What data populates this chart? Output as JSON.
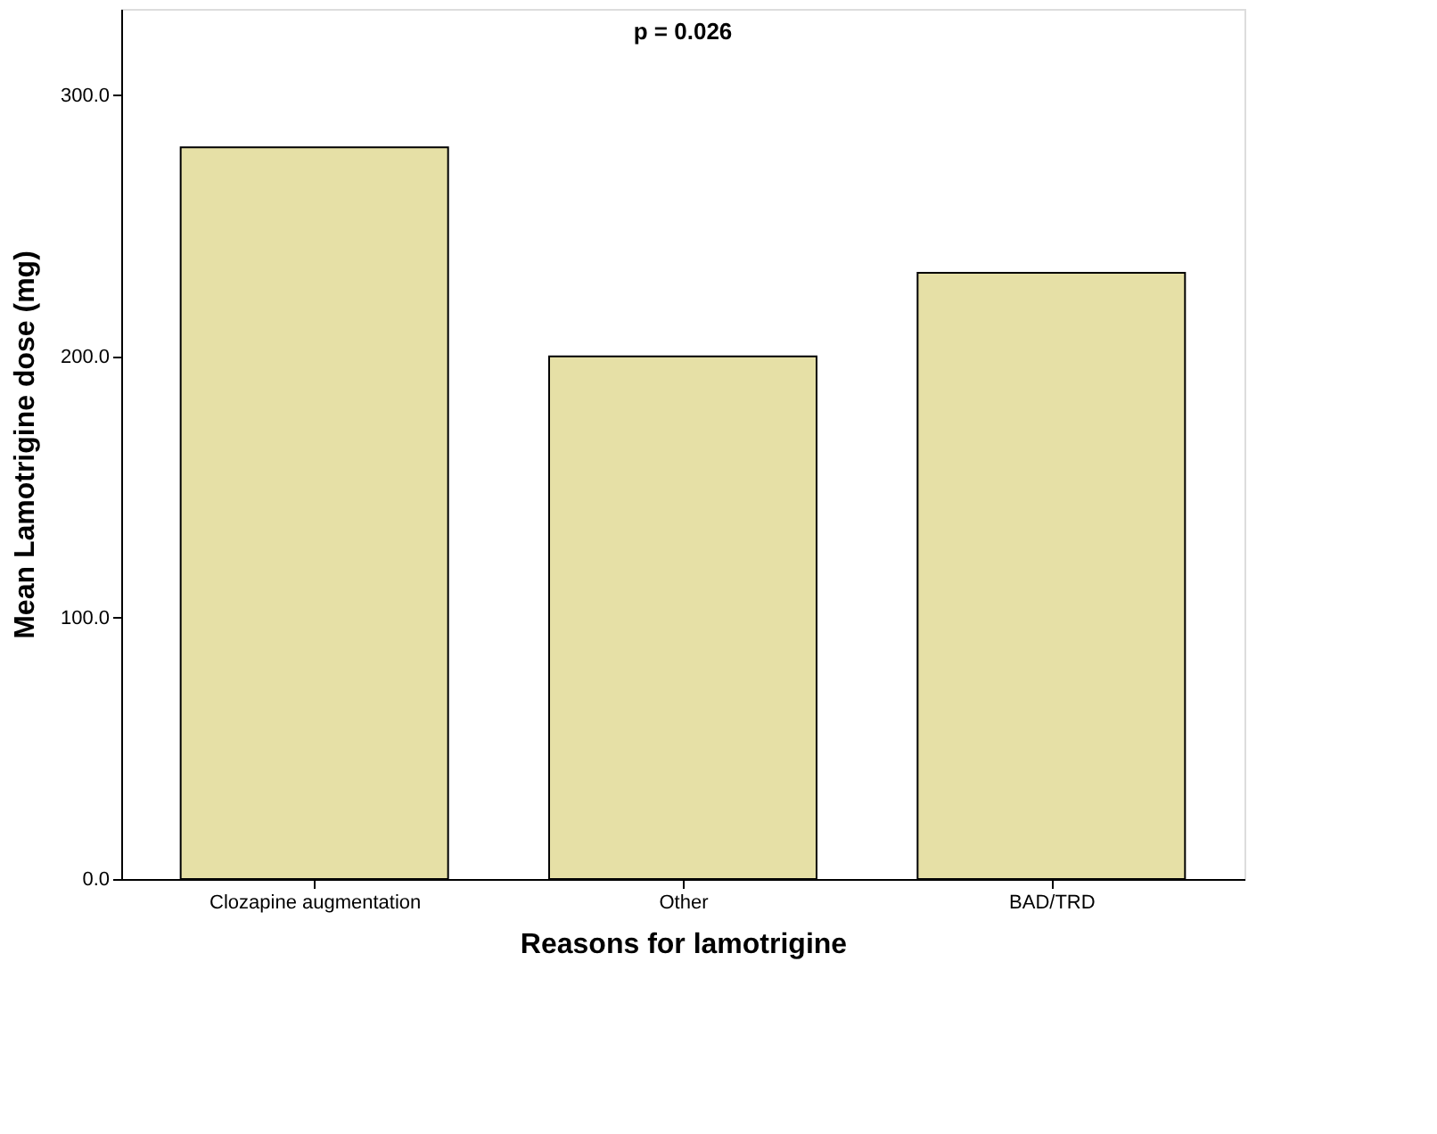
{
  "chart_data": {
    "type": "bar",
    "title": "p = 0.026",
    "xlabel": "Reasons for lamotrigine",
    "ylabel": "Mean Lamotrigine dose (mg)",
    "categories": [
      "Clozapine augmentation",
      "Other",
      "BAD/TRD"
    ],
    "values": [
      280,
      200,
      232
    ],
    "color": "#e6e0a6",
    "ylim": [
      0,
      333
    ],
    "yticks": [
      {
        "value": 0,
        "label": "0.0"
      },
      {
        "value": 100,
        "label": "100.0"
      },
      {
        "value": 200,
        "label": "200.0"
      },
      {
        "value": 300,
        "label": "300.0"
      }
    ],
    "grid": false
  }
}
